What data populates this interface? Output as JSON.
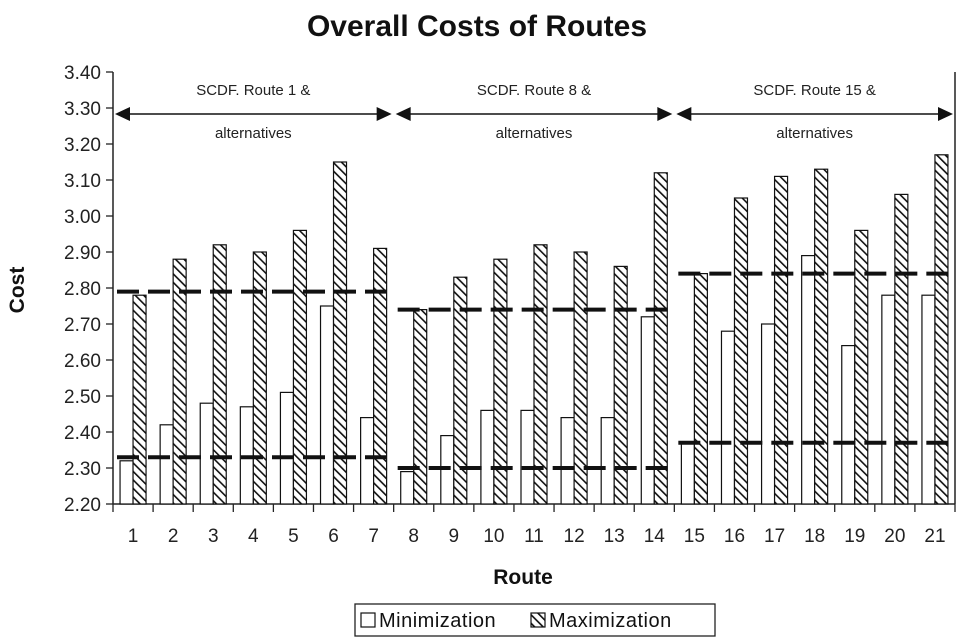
{
  "chart_data": {
    "type": "bar",
    "title": "Overall Costs of Routes",
    "xlabel": "Route",
    "ylabel": "Cost",
    "ylim": [
      2.2,
      3.4
    ],
    "ytick_step": 0.1,
    "categories": [
      "1",
      "2",
      "3",
      "4",
      "5",
      "6",
      "7",
      "8",
      "9",
      "10",
      "11",
      "12",
      "13",
      "14",
      "15",
      "16",
      "17",
      "18",
      "19",
      "20",
      "21"
    ],
    "series": [
      {
        "name": "Minimization",
        "values": [
          2.32,
          2.42,
          2.48,
          2.47,
          2.51,
          2.75,
          2.44,
          2.29,
          2.39,
          2.46,
          2.46,
          2.44,
          2.44,
          2.72,
          2.37,
          2.68,
          2.7,
          2.89,
          2.64,
          2.78,
          2.78
        ],
        "fill": "#ffffff",
        "pattern": "none"
      },
      {
        "name": "Maximization",
        "values": [
          2.78,
          2.88,
          2.92,
          2.9,
          2.96,
          3.15,
          2.91,
          2.74,
          2.83,
          2.88,
          2.92,
          2.9,
          2.86,
          3.12,
          2.84,
          3.05,
          3.11,
          3.13,
          2.96,
          3.06,
          3.17
        ],
        "fill": "#ffffff",
        "pattern": "diagonal-hatch"
      }
    ],
    "groups": [
      {
        "label_line1": "SCDF. Route 1 &",
        "label_line2": "alternatives",
        "from": "1",
        "to": "7",
        "min_line": 2.33,
        "max_line": 2.79
      },
      {
        "label_line1": "SCDF. Route 8 &",
        "label_line2": "alternatives",
        "from": "8",
        "to": "14",
        "min_line": 2.3,
        "max_line": 2.74
      },
      {
        "label_line1": "SCDF. Route 15 &",
        "label_line2": "alternatives",
        "from": "15",
        "to": "21",
        "min_line": 2.37,
        "max_line": 2.84
      }
    ],
    "grid": false,
    "legend": {
      "placement": "bottom-center",
      "entries": [
        "Minimization",
        "Maximization"
      ]
    },
    "colors": {
      "bar_stroke": "#111111",
      "hatch": "#111111",
      "reference_line": "#111111",
      "axis": "#222222"
    }
  }
}
